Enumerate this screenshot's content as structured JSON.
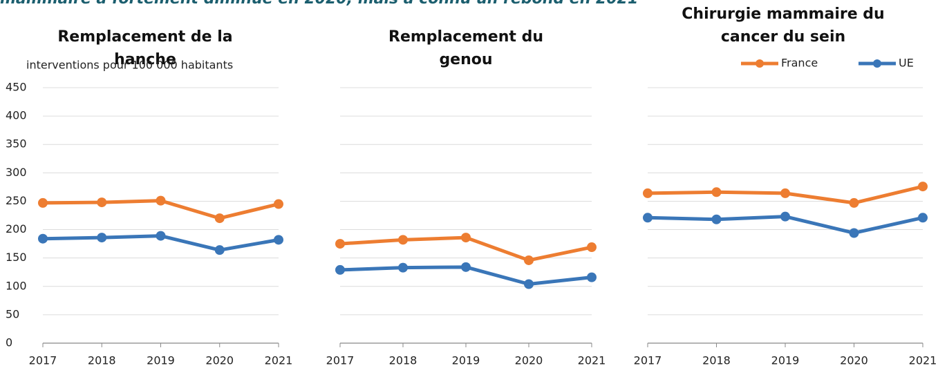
{
  "title": "mammaire a fortement diminué en 2020, mais a connu un rebond en 2021",
  "chart_data": [
    {
      "type": "line",
      "title": "Remplacement de la hanche",
      "ylabel": "interventions pour 100 000 habitants",
      "categories": [
        "2017",
        "2018",
        "2019",
        "2020",
        "2021"
      ],
      "series": [
        {
          "color": "#ed7d31",
          "values": [
            247,
            248,
            251,
            220,
            245
          ]
        },
        {
          "color": "#3a76b8",
          "values": [
            184,
            186,
            189,
            164,
            182
          ]
        }
      ],
      "ylim": [
        0,
        450
      ],
      "yticks": [
        0,
        50,
        100,
        150,
        200,
        250,
        300,
        350,
        400,
        450
      ],
      "grid": true
    },
    {
      "type": "line",
      "title": "Remplacement du genou",
      "categories": [
        "2017",
        "2018",
        "2019",
        "2020",
        "2021"
      ],
      "series": [
        {
          "color": "#ed7d31",
          "values": [
            175,
            182,
            186,
            146,
            169
          ]
        },
        {
          "color": "#3a76b8",
          "values": [
            129,
            133,
            134,
            104,
            116
          ]
        }
      ],
      "ylim": [
        0,
        450
      ],
      "yticks": [
        0,
        50,
        100,
        150,
        200,
        250,
        300,
        350,
        400,
        450
      ],
      "grid": true
    },
    {
      "type": "line",
      "title": "Chirurgie mammaire du cancer du sein",
      "categories": [
        "2017",
        "2018",
        "2019",
        "2020",
        "2021"
      ],
      "series": [
        {
          "name": "France",
          "color": "#ed7d31",
          "values": [
            264,
            266,
            264,
            247,
            276
          ]
        },
        {
          "name": "UE",
          "color": "#3a76b8",
          "values": [
            221,
            218,
            223,
            194,
            221
          ]
        }
      ],
      "ylim": [
        0,
        450
      ],
      "yticks": [
        0,
        50,
        100,
        150,
        200,
        250,
        300,
        350,
        400,
        450
      ],
      "grid": true,
      "legend": "top-right"
    }
  ]
}
